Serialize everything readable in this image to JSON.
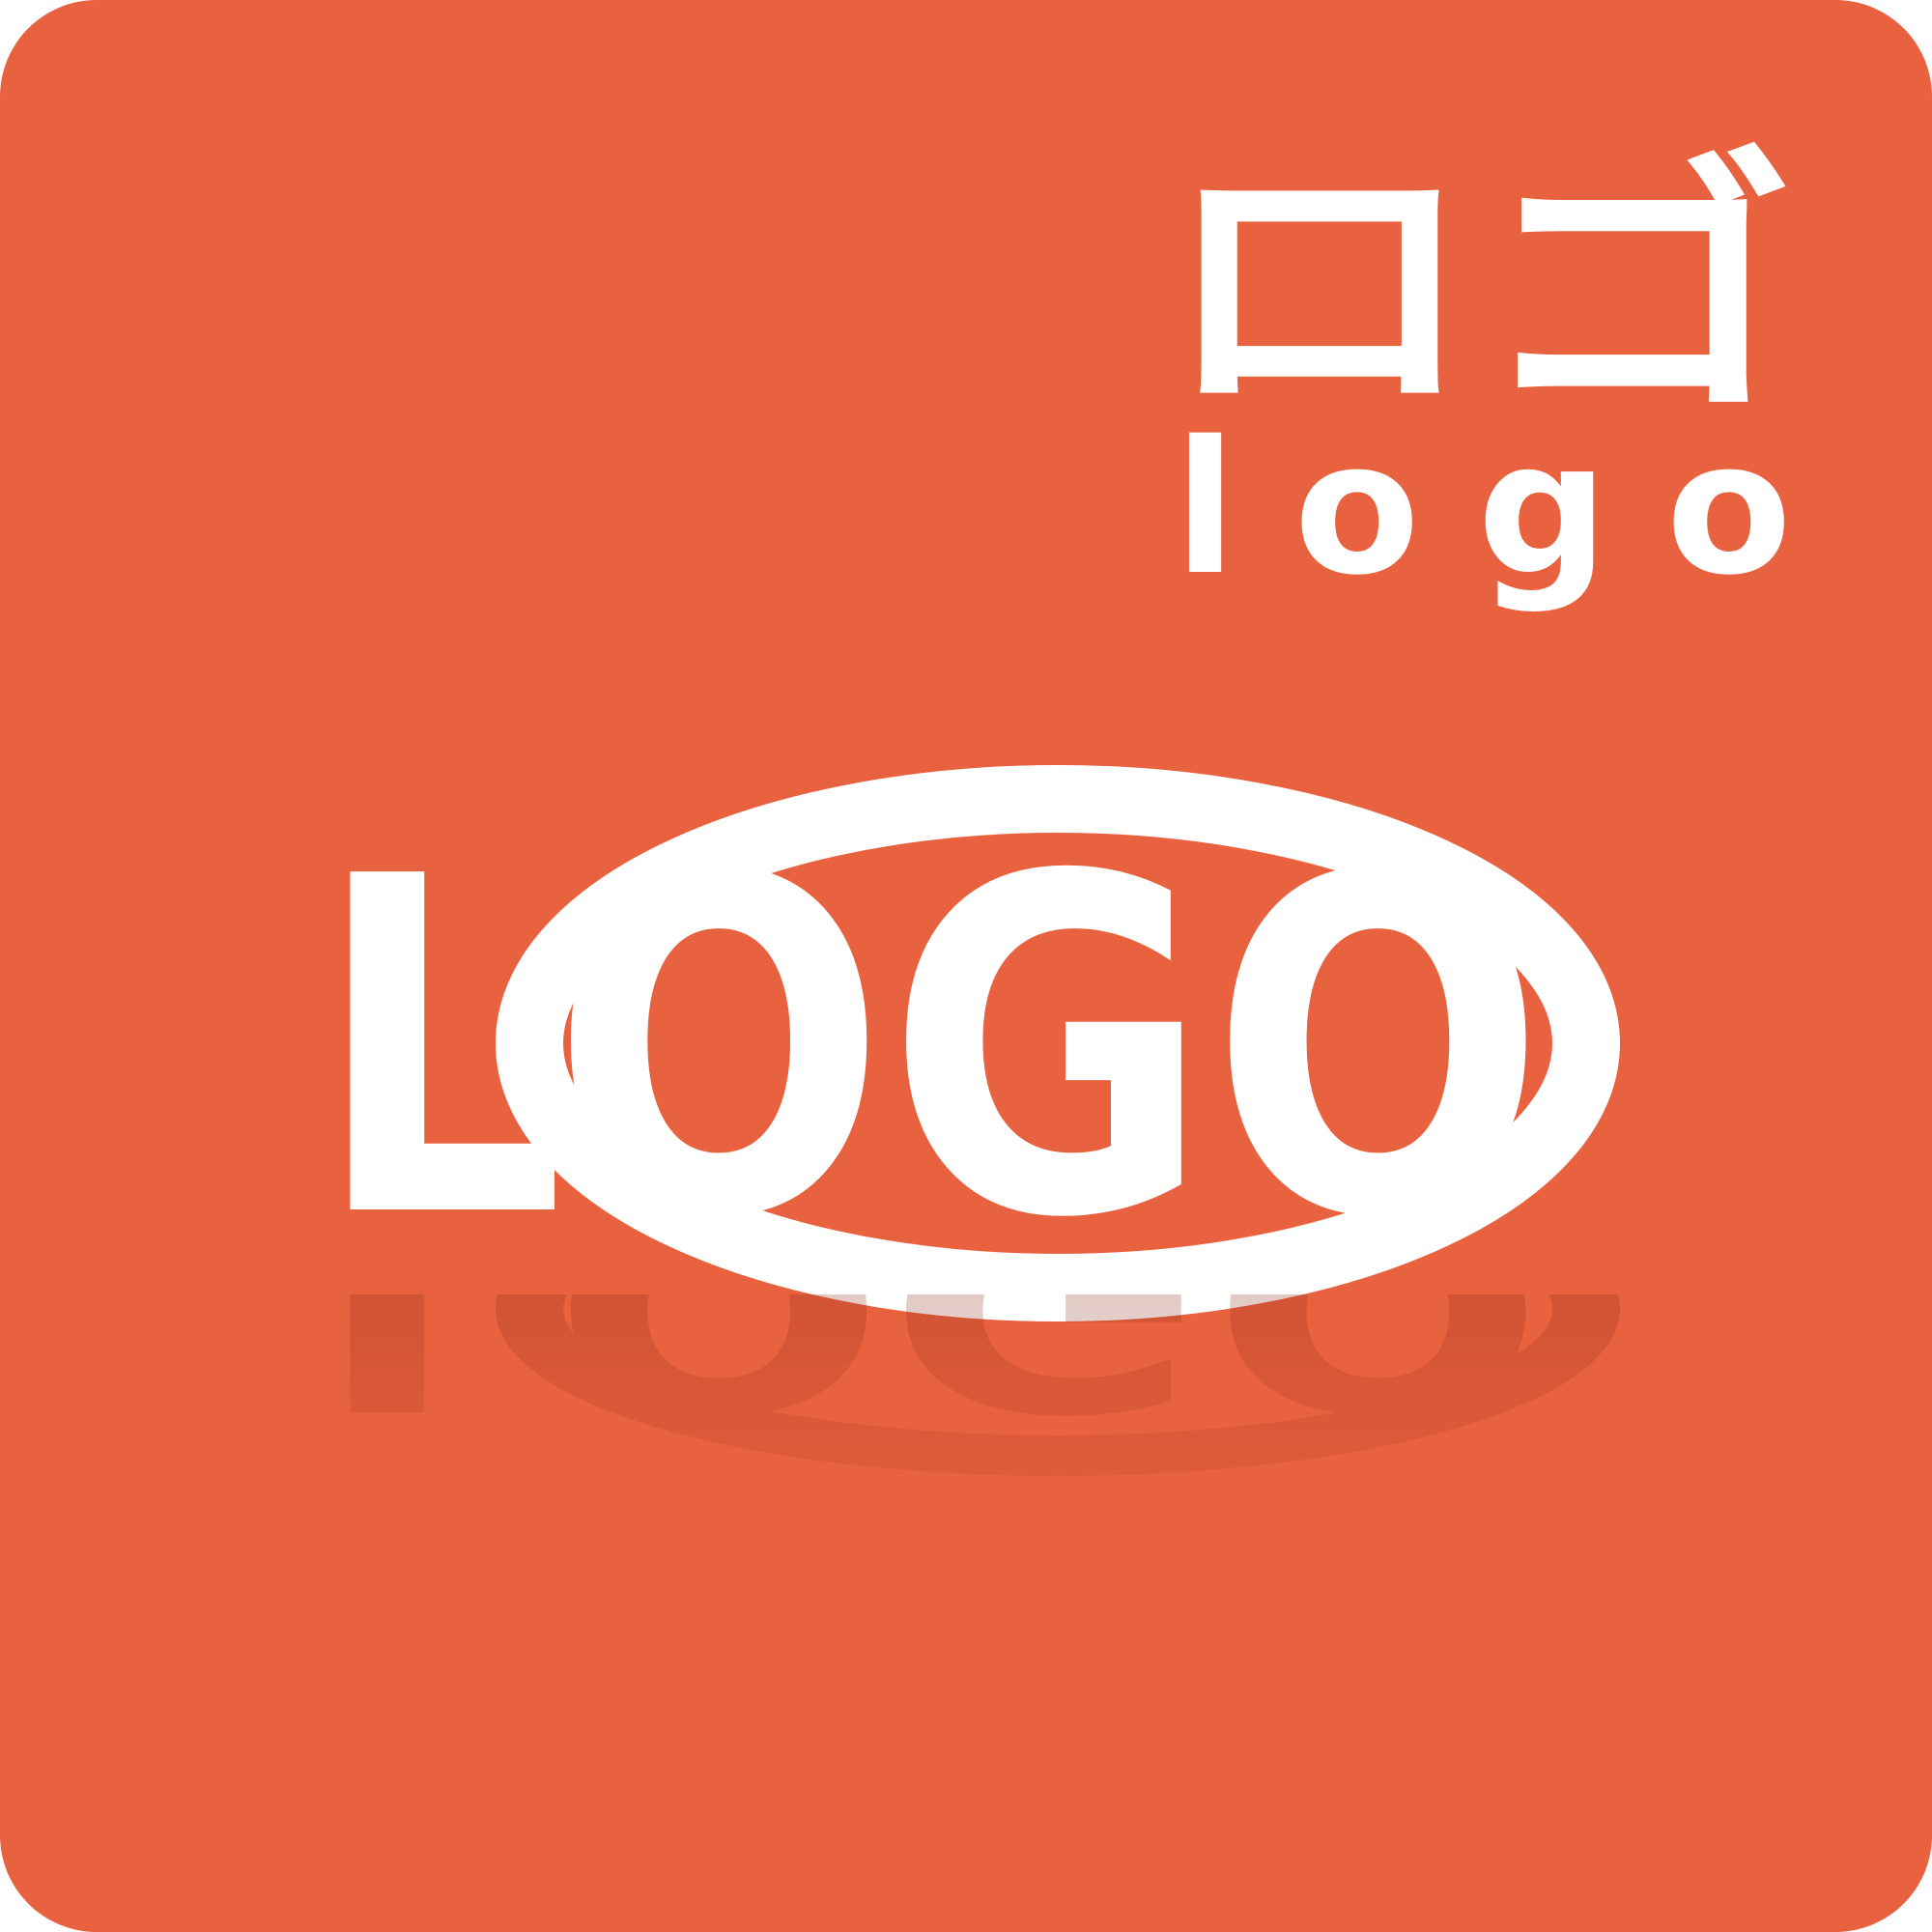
{
  "header": {
    "japanese": "ロゴ",
    "romaji": "logo"
  },
  "logo": {
    "text": "LOGO"
  }
}
